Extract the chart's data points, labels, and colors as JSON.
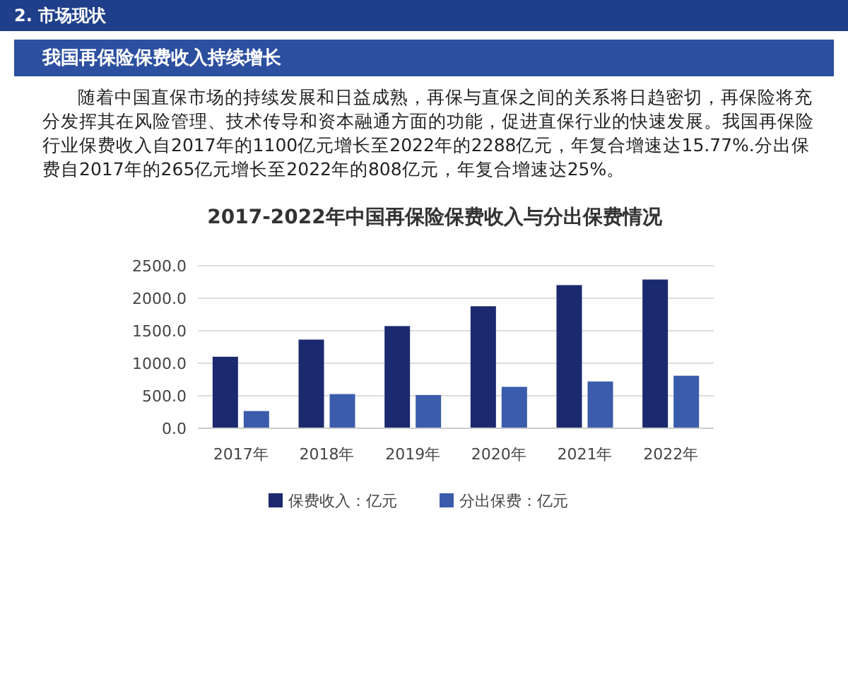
{
  "chart_data": {
    "type": "bar",
    "title": "2017-2022年中国再保险保费收入与分出保费情况",
    "annotations": [
      "2. 市场现状",
      "我国再保险保费收入持续增长",
      "随着中国直保市场的持续发展和日益成熟，再保与直保之间的关系将日趋密切，再保险将充分发挥其在风险管理、技术传导和资本融通方面的功能，促进直保行业的快速发展。我国再保险行业保费收入自2017年的1100亿元增长至2022年的2288亿元，年复合增速达15.77%.分出保费自2017年的265亿元增长至2022年的808亿元，年复合增速达25%。"
    ],
    "categories": [
      "2017年",
      "2018年",
      "2019年",
      "2020年",
      "2021年",
      "2022年"
    ],
    "series": [
      {
        "name": "保费收入：亿元",
        "color": "#1b2a6e",
        "values": [
          1100,
          1364,
          1572,
          1877,
          2202,
          2288
        ]
      },
      {
        "name": "分出保费：亿元",
        "color": "#3b5cab",
        "values": [
          265,
          526,
          512,
          637,
          720,
          808
        ]
      }
    ],
    "ylim": [
      0,
      2500
    ],
    "yticks": [
      {
        "value": 0,
        "label": "0.0"
      },
      {
        "value": 500,
        "label": "500.0"
      },
      {
        "value": 1000,
        "label": "1000.0"
      },
      {
        "value": 1500,
        "label": "1500.0"
      },
      {
        "value": 2000,
        "label": "2000.0"
      },
      {
        "value": 2500,
        "label": "2500.0"
      }
    ],
    "grid": "y",
    "legend": "bottom"
  }
}
